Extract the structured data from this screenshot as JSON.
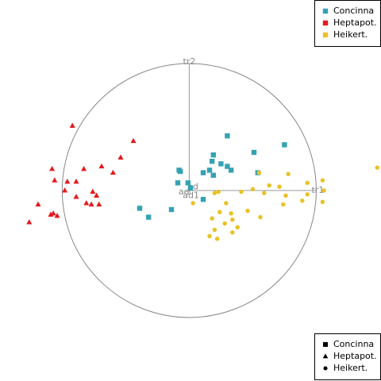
{
  "chart_data": {
    "type": "scatter",
    "xlim": [
      -1.49,
      1.51
    ],
    "ylim": [
      -1.5,
      1.5
    ],
    "circle_radius": 1,
    "variables": [
      {
        "name": "tr1",
        "x": 1,
        "y": 0
      },
      {
        "name": "tr2",
        "x": 0,
        "y": 1
      },
      {
        "name": "ad",
        "x": -0.03,
        "y": -0.01
      },
      {
        "name": "ed",
        "x": 0.02,
        "y": 0.02
      },
      {
        "name": "ad1",
        "x": 0.01,
        "y": -0.03
      }
    ],
    "series": [
      {
        "name": "Concinna",
        "color": "#35a2b4",
        "shape": "square",
        "x": [
          0.3,
          0.75,
          0.51,
          0.19,
          0.18,
          0.25,
          0.3,
          0.16,
          0.11,
          -0.08,
          -0.07,
          0.33,
          0.54,
          0.19,
          -0.09,
          -0.01,
          0.01,
          0.11,
          -0.39,
          -0.14,
          -0.32
        ],
        "y": [
          0.43,
          0.36,
          0.3,
          0.28,
          0.23,
          0.21,
          0.19,
          0.16,
          0.14,
          0.16,
          0.15,
          0.16,
          0.14,
          0.12,
          0.06,
          0.06,
          0.02,
          -0.07,
          -0.14,
          -0.15,
          -0.21
        ]
      },
      {
        "name": "Heptapot.",
        "color": "#e41a1c",
        "shape": "triangle",
        "x": [
          -0.92,
          -0.44,
          -0.54,
          -0.69,
          -0.83,
          -1.08,
          -0.6,
          -1.06,
          -0.96,
          -0.89,
          -0.98,
          -0.76,
          -0.89,
          -0.73,
          -0.81,
          -0.71,
          -0.77,
          -1.19,
          -1.07,
          -1.09,
          -1.04,
          -1.26
        ],
        "y": [
          0.51,
          0.39,
          0.26,
          0.19,
          0.17,
          0.17,
          0.14,
          0.08,
          0.07,
          0.07,
          0,
          -0.01,
          -0.05,
          -0.04,
          -0.1,
          -0.11,
          -0.11,
          -0.11,
          -0.18,
          -0.19,
          -0.2,
          -0.25
        ]
      },
      {
        "name": "Heikert.",
        "color": "#e8c226",
        "shape": "circle",
        "x": [
          1.48,
          0.55,
          0.78,
          1.05,
          0.93,
          0.63,
          0.5,
          0.71,
          1.06,
          0.41,
          0.59,
          0.2,
          0.23,
          0.93,
          0.76,
          0.89,
          1.05,
          0.03,
          0.74,
          0.29,
          0.24,
          0.33,
          0.18,
          0.46,
          0.56,
          0.34,
          0.28,
          0.38,
          0.2,
          0.34,
          0.16,
          0.22
        ],
        "y": [
          0.18,
          0.14,
          0.13,
          0.08,
          0.06,
          0.04,
          0.01,
          0.03,
          0,
          -0.01,
          -0.02,
          -0.02,
          -0.01,
          -0.03,
          -0.04,
          -0.08,
          -0.09,
          -0.1,
          -0.11,
          -0.1,
          -0.17,
          -0.18,
          -0.22,
          -0.16,
          -0.21,
          -0.23,
          -0.26,
          -0.29,
          -0.31,
          -0.33,
          -0.36,
          -0.38
        ]
      }
    ]
  }
}
